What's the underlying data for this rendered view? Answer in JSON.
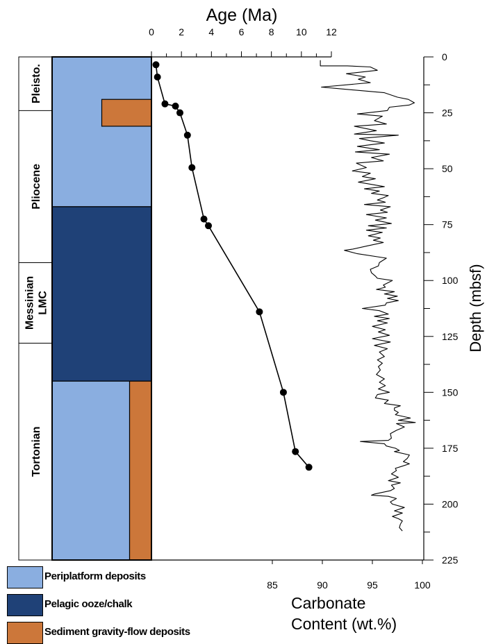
{
  "chart_data": {
    "type": "scatter",
    "title": "",
    "age_axis": {
      "label": "Age (Ma)",
      "range": [
        0,
        12
      ],
      "ticks": [
        0,
        2,
        4,
        6,
        8,
        10,
        12
      ],
      "position": "top"
    },
    "depth_axis": {
      "label": "Depth (mbsf)",
      "range": [
        0,
        225
      ],
      "ticks": [
        0,
        25,
        50,
        75,
        100,
        125,
        150,
        175,
        200,
        225
      ],
      "position": "right",
      "inverted": true
    },
    "carbonate_axis": {
      "label_lines": [
        "Carbonate",
        "Content (wt.%)"
      ],
      "range": [
        80,
        100
      ],
      "ticks": [
        85,
        90,
        95,
        100
      ],
      "position": "bottom"
    },
    "series": [
      {
        "kind": "age-depth",
        "style": "line+markers",
        "color": "#000000",
        "points": [
          [
            0.3,
            3.5
          ],
          [
            0.4,
            9
          ],
          [
            0.9,
            21
          ],
          [
            1.6,
            22
          ],
          [
            1.9,
            25
          ],
          [
            2.4,
            35
          ],
          [
            2.7,
            49.5
          ],
          [
            3.5,
            72.5
          ],
          [
            3.8,
            75.5
          ],
          [
            7.2,
            114
          ],
          [
            8.8,
            150
          ],
          [
            9.6,
            176.5
          ],
          [
            10.5,
            183.5
          ]
        ]
      },
      {
        "kind": "carbonate-depth",
        "style": "line",
        "color": "#000000",
        "points": [
          [
            89.8,
            1.5
          ],
          [
            89.8,
            4
          ],
          [
            92.5,
            4
          ],
          [
            94.8,
            4.5
          ],
          [
            95.5,
            6
          ],
          [
            92.4,
            7.5
          ],
          [
            94.3,
            9
          ],
          [
            93.6,
            10
          ],
          [
            94.8,
            11.5
          ],
          [
            89.9,
            13.5
          ],
          [
            96.2,
            16
          ],
          [
            97.5,
            18
          ],
          [
            98.6,
            19
          ],
          [
            99.2,
            20.5
          ],
          [
            98.7,
            21.5
          ],
          [
            96.7,
            22.5
          ],
          [
            96.5,
            24
          ],
          [
            93.5,
            25.5
          ],
          [
            96.0,
            26.5
          ],
          [
            95.2,
            28.5
          ],
          [
            96.4,
            30
          ],
          [
            93.2,
            31
          ],
          [
            95.4,
            33
          ],
          [
            93.2,
            34.5
          ],
          [
            97.6,
            35
          ],
          [
            93.7,
            36.5
          ],
          [
            94.8,
            37.5
          ],
          [
            96.2,
            38.5
          ],
          [
            93.5,
            40
          ],
          [
            95.7,
            41.5
          ],
          [
            93.3,
            42.5
          ],
          [
            96.7,
            43.5
          ],
          [
            94.9,
            45
          ],
          [
            96.1,
            46.5
          ],
          [
            93.4,
            47.5
          ],
          [
            94.4,
            49.5
          ],
          [
            93.0,
            51
          ],
          [
            94.8,
            52
          ],
          [
            94.0,
            53.5
          ],
          [
            95.3,
            54.5
          ],
          [
            93.6,
            56
          ],
          [
            94.9,
            57
          ],
          [
            96.2,
            58
          ],
          [
            94.2,
            59
          ],
          [
            95.7,
            60
          ],
          [
            94.9,
            61
          ],
          [
            96.6,
            62
          ],
          [
            96.1,
            63
          ],
          [
            95.5,
            64
          ],
          [
            96.3,
            65
          ],
          [
            94.2,
            66
          ],
          [
            96.8,
            67
          ],
          [
            95.8,
            68.5
          ],
          [
            96.5,
            69.5
          ],
          [
            94.4,
            70.5
          ],
          [
            96.4,
            72
          ],
          [
            95.3,
            73
          ],
          [
            96.9,
            74.5
          ],
          [
            94.6,
            75.5
          ],
          [
            96.4,
            76.5
          ],
          [
            94.4,
            77.5
          ],
          [
            96.0,
            78.5
          ],
          [
            94.6,
            80
          ],
          [
            95.8,
            81
          ],
          [
            95.1,
            82
          ],
          [
            96.1,
            83
          ],
          [
            94.5,
            84.5
          ],
          [
            93.0,
            86
          ],
          [
            92.2,
            86.5
          ],
          [
            93.5,
            88
          ],
          [
            96.4,
            90
          ],
          [
            95.7,
            92
          ],
          [
            95.6,
            93.5
          ],
          [
            94.8,
            95
          ],
          [
            94.9,
            96.5
          ],
          [
            95.3,
            98
          ],
          [
            95.5,
            99
          ],
          [
            97.0,
            100
          ],
          [
            96.1,
            102
          ],
          [
            96.3,
            103
          ],
          [
            95.4,
            104
          ],
          [
            97.2,
            105
          ],
          [
            96.2,
            106
          ],
          [
            97.5,
            107
          ],
          [
            96.5,
            108
          ],
          [
            97.6,
            109
          ],
          [
            96.4,
            110
          ],
          [
            96.3,
            111
          ],
          [
            94.0,
            112.5
          ],
          [
            95.7,
            113.5
          ],
          [
            96.6,
            115
          ],
          [
            95.2,
            116
          ],
          [
            96.7,
            117
          ],
          [
            95.5,
            118
          ],
          [
            96.5,
            119
          ],
          [
            95.0,
            120.5
          ],
          [
            96.3,
            122
          ],
          [
            95.6,
            123
          ],
          [
            96.7,
            124.5
          ],
          [
            95.0,
            126
          ],
          [
            96.8,
            127.5
          ],
          [
            95.2,
            129
          ],
          [
            96.5,
            130.5
          ],
          [
            95.7,
            132
          ],
          [
            96.2,
            134
          ],
          [
            95.5,
            135.5
          ],
          [
            96.0,
            137
          ],
          [
            95.6,
            138.5
          ],
          [
            95.8,
            140
          ],
          [
            95.4,
            142
          ],
          [
            96.2,
            144
          ],
          [
            95.7,
            145.5
          ],
          [
            96.3,
            147
          ],
          [
            95.6,
            148.5
          ],
          [
            96.7,
            150
          ],
          [
            95.5,
            151
          ],
          [
            95.3,
            152.5
          ],
          [
            96.6,
            153.5
          ],
          [
            96.2,
            155
          ],
          [
            97.8,
            156
          ],
          [
            97.2,
            157
          ],
          [
            97.2,
            158
          ],
          [
            97.6,
            159
          ],
          [
            97.3,
            160
          ],
          [
            98.8,
            161.5
          ],
          [
            97.6,
            162.5
          ],
          [
            99.3,
            163.5
          ],
          [
            97.4,
            164
          ],
          [
            98.2,
            165.5
          ],
          [
            97.4,
            167
          ],
          [
            96.8,
            168.5
          ],
          [
            96.9,
            170.5
          ],
          [
            96.6,
            171.5
          ],
          [
            93.8,
            172
          ],
          [
            96.2,
            173
          ],
          [
            96.4,
            174
          ],
          [
            97.3,
            175
          ],
          [
            97.7,
            176
          ],
          [
            97.2,
            176.5
          ],
          [
            98.7,
            178
          ],
          [
            98.5,
            179.5
          ],
          [
            98.1,
            181
          ],
          [
            98.7,
            182
          ],
          [
            98.0,
            183
          ],
          [
            97.3,
            184
          ],
          [
            97.4,
            185
          ],
          [
            96.9,
            186.5
          ],
          [
            97.6,
            188
          ],
          [
            96.6,
            189.5
          ],
          [
            97.8,
            190.5
          ],
          [
            96.9,
            191.5
          ],
          [
            97.2,
            193
          ],
          [
            96.8,
            194
          ],
          [
            95.2,
            195.5
          ],
          [
            94.9,
            196
          ],
          [
            96.6,
            196.5
          ],
          [
            97.4,
            197.5
          ],
          [
            96.8,
            199
          ],
          [
            97.0,
            200
          ],
          [
            98.2,
            201.5
          ],
          [
            97.2,
            203
          ],
          [
            98.0,
            204
          ],
          [
            97.0,
            205.5
          ],
          [
            97.6,
            206.5
          ],
          [
            98.0,
            207.5
          ],
          [
            97.8,
            209
          ],
          [
            97.7,
            210.5
          ],
          [
            98.0,
            212
          ]
        ]
      }
    ],
    "column": {
      "epochs": [
        {
          "label": "Pleisto.",
          "lines": [
            "Pleisto."
          ],
          "top": 0,
          "bottom": 24
        },
        {
          "label": "Pliocene",
          "lines": [
            "Pliocene"
          ],
          "top": 24,
          "bottom": 92
        },
        {
          "label": "Messinian LMC",
          "lines": [
            "Messinian",
            "LMC"
          ],
          "top": 92,
          "bottom": 128
        },
        {
          "label": "Tortonian",
          "lines": [
            "Tortonian"
          ],
          "top": 128,
          "bottom": 225
        }
      ],
      "lithology": [
        {
          "type": "periplatform",
          "top": 0,
          "bottom": 67,
          "from": 0,
          "to": 1
        },
        {
          "type": "gravity_flow",
          "top": 19,
          "bottom": 31,
          "from": 0.5,
          "to": 1
        },
        {
          "type": "pelagic",
          "top": 67,
          "bottom": 145,
          "from": 0,
          "to": 1
        },
        {
          "type": "periplatform",
          "top": 145,
          "bottom": 225,
          "from": 0,
          "to": 0.78
        },
        {
          "type": "gravity_flow",
          "top": 145,
          "bottom": 225,
          "from": 0.78,
          "to": 1
        }
      ]
    },
    "legend": [
      {
        "type": "periplatform",
        "label": "Periplatform deposits",
        "color": "#8aaee0"
      },
      {
        "type": "pelagic",
        "label": "Pelagic ooze/chalk",
        "color": "#1f4177"
      },
      {
        "type": "gravity_flow",
        "label": "Sediment gravity-flow deposits",
        "color": "#cc773a"
      }
    ]
  }
}
